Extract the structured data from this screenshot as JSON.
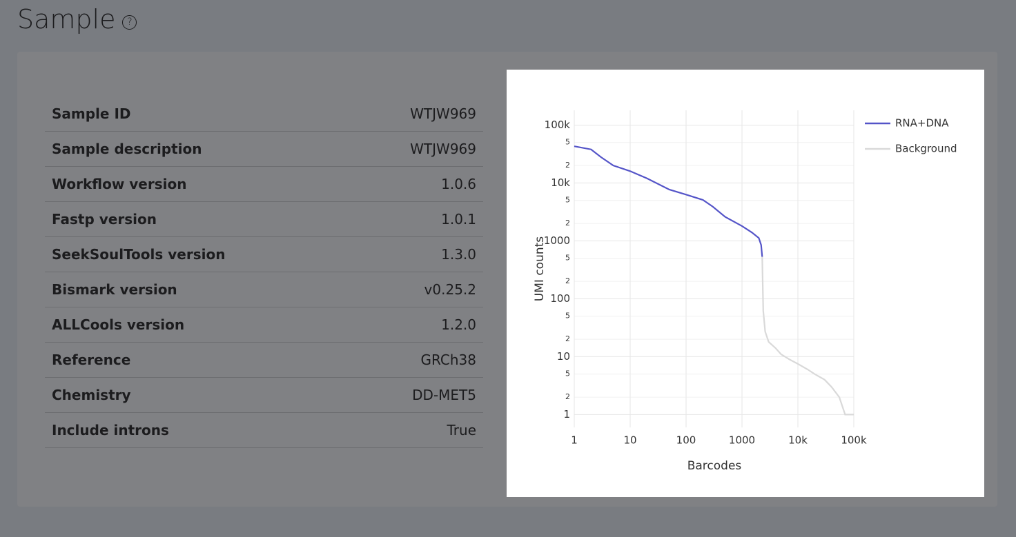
{
  "header": {
    "title": "Sample",
    "help_icon": "?"
  },
  "table": {
    "rows": [
      [
        "Sample ID",
        "WTJW969"
      ],
      [
        "Sample description",
        "WTJW969"
      ],
      [
        "Workflow version",
        "1.0.6"
      ],
      [
        "Fastp version",
        "1.0.1"
      ],
      [
        "SeekSoulTools version",
        "1.3.0"
      ],
      [
        "Bismark version",
        "v0.25.2"
      ],
      [
        "ALLCools version",
        "1.2.0"
      ],
      [
        "Reference",
        "GRCh38"
      ],
      [
        "Chemistry",
        "DD-MET5"
      ],
      [
        "Include introns",
        "True"
      ]
    ]
  },
  "chart_data": {
    "type": "line",
    "x_label": "Barcodes",
    "y_label": "UMI counts",
    "xscale": "log",
    "yscale": "log",
    "grid": true,
    "legend": "top-right",
    "xlim": [
      1,
      100000
    ],
    "ylim": [
      0.6,
      180000
    ],
    "xticks": [
      1,
      10,
      100,
      1000,
      {
        "value": 10000,
        "label": "10k"
      },
      {
        "value": 100000,
        "label": "100k"
      }
    ],
    "yticks": [
      1,
      2,
      5,
      10,
      {
        "value": 20,
        "label": "2"
      },
      {
        "value": 50,
        "label": "5"
      },
      100,
      {
        "value": 200,
        "label": "2"
      },
      {
        "value": 500,
        "label": "5"
      },
      1000,
      {
        "value": 2000,
        "label": "2"
      },
      {
        "value": 5000,
        "label": "5"
      },
      {
        "value": 10000,
        "label": "10k"
      },
      {
        "value": 20000,
        "label": "2"
      },
      {
        "value": 50000,
        "label": "5"
      },
      {
        "value": 100000,
        "label": "100k"
      }
    ],
    "series": [
      {
        "name": "RNA+DNA",
        "color": "#5454c8",
        "x": [
          1,
          2,
          3,
          5,
          10,
          20,
          50,
          100,
          200,
          300,
          500,
          1000,
          1500,
          2000,
          2200,
          2300
        ],
        "values": [
          43000,
          38000,
          28000,
          20000,
          16000,
          12000,
          7700,
          6300,
          5100,
          3900,
          2600,
          1800,
          1400,
          1120,
          850,
          530
        ]
      },
      {
        "name": "Background",
        "color": "#d9d9d9",
        "x": [
          2300,
          2400,
          2600,
          3000,
          4000,
          5000,
          7000,
          10000,
          15000,
          20000,
          30000,
          40000,
          55000,
          70000,
          100000
        ],
        "values": [
          530,
          62,
          27,
          18,
          14,
          11,
          9,
          7.5,
          6,
          5,
          4,
          3,
          2,
          1,
          1
        ]
      }
    ]
  }
}
